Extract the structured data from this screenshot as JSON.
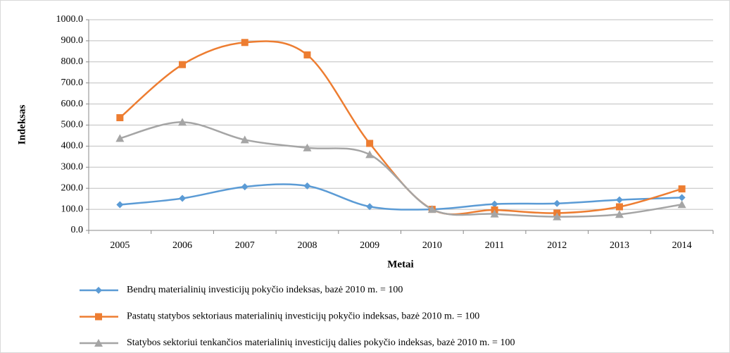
{
  "chart_data": {
    "type": "line",
    "categories": [
      "2005",
      "2006",
      "2007",
      "2008",
      "2009",
      "2010",
      "2011",
      "2012",
      "2013",
      "2014"
    ],
    "x_label": "Metai",
    "y_label": "Indeksas",
    "ylim": [
      0,
      1000
    ],
    "yticks": [
      {
        "value": 0,
        "label": "0.0"
      },
      {
        "value": 100,
        "label": "100.0"
      },
      {
        "value": 200,
        "label": "200.0"
      },
      {
        "value": 300,
        "label": "300.0"
      },
      {
        "value": 400,
        "label": "400.0"
      },
      {
        "value": 500,
        "label": "500.0"
      },
      {
        "value": 600,
        "label": "600.0"
      },
      {
        "value": 700,
        "label": "700.0"
      },
      {
        "value": 800,
        "label": "800.0"
      },
      {
        "value": 900,
        "label": "900.0"
      },
      {
        "value": 1000,
        "label": "1000.0"
      }
    ],
    "grid": true,
    "smooth": true,
    "legend": "bottom",
    "series": [
      {
        "name": "Bendrų materialinių investicijų pokyčio indeksas, bazė 2010 m. = 100",
        "color": "#5b9bd5",
        "marker": "diamond",
        "values": [
          122,
          152,
          207,
          211,
          113,
          100,
          125,
          128,
          145,
          156
        ]
      },
      {
        "name": "Pastatų statybos sektoriaus materialinių investicijų pokyčio indeksas, bazė 2010 m. = 100",
        "color": "#ed7d31",
        "marker": "square",
        "values": [
          535,
          787,
          892,
          833,
          413,
          100,
          97,
          82,
          112,
          197
        ]
      },
      {
        "name": "Statybos sektoriui tenkančios materialinių investicijų dalies pokyčio indeksas, bazė 2010 m. = 100",
        "color": "#a5a5a5",
        "marker": "triangle",
        "values": [
          437,
          514,
          430,
          392,
          360,
          100,
          78,
          65,
          76,
          123
        ]
      }
    ]
  }
}
